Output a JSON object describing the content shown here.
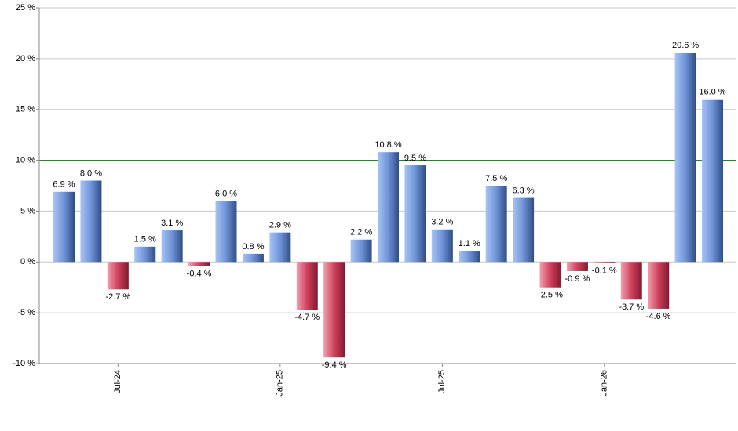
{
  "chart_data": {
    "type": "bar",
    "categories": [
      null,
      null,
      "Jul-24",
      null,
      null,
      null,
      null,
      null,
      "Jan-25",
      null,
      null,
      null,
      null,
      null,
      "Jul-25",
      null,
      null,
      null,
      null,
      null,
      "Jan-26",
      null,
      null,
      null,
      null
    ],
    "values": [
      6.9,
      8.0,
      -2.7,
      1.5,
      3.1,
      -0.4,
      6.0,
      0.8,
      2.9,
      -4.7,
      -9.4,
      2.2,
      10.8,
      9.5,
      3.2,
      1.1,
      7.5,
      6.3,
      -2.5,
      -0.9,
      -0.1,
      -3.7,
      -4.6,
      20.6,
      16.0
    ],
    "value_labels": [
      "6.9 %",
      "8.0 %",
      "-2.7 %",
      "1.5 %",
      "3.1 %",
      "-0.4 %",
      "6.0 %",
      "0.8 %",
      "2.9 %",
      "-4.7 %",
      "-9.4 %",
      "2.2 %",
      "10.8 %",
      "9.5 %",
      "3.2 %",
      "1.1 %",
      "7.5 %",
      "6.3 %",
      "-2.5 %",
      "-0.9 %",
      "-0.1 %",
      "-3.7 %",
      "-4.6 %",
      "20.6 %",
      "16.0 %"
    ],
    "color": "#5b80c9",
    "negative_color": "#c22f4c",
    "ylim": [
      -10,
      25
    ],
    "yticks": [
      {
        "value": -10,
        "label": "-10 %"
      },
      {
        "value": -5,
        "label": "-5 %"
      },
      {
        "value": 0,
        "label": "0 %"
      },
      {
        "value": 5,
        "label": "5 %"
      },
      {
        "value": 10,
        "label": "10 %"
      },
      {
        "value": 15,
        "label": "15 %"
      },
      {
        "value": 20,
        "label": "20 %"
      },
      {
        "value": 25,
        "label": "25 %"
      }
    ],
    "grid": true,
    "reference_line": {
      "value": 10,
      "color": "#008000"
    }
  }
}
